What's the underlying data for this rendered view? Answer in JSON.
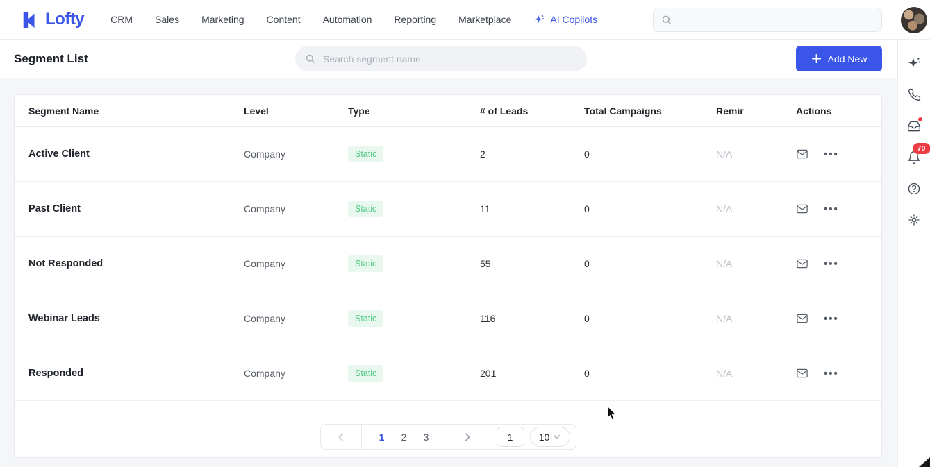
{
  "brand": {
    "logo_text": "Lofty",
    "accent_color": "#3a55e8"
  },
  "nav": {
    "items": [
      "CRM",
      "Sales",
      "Marketing",
      "Content",
      "Automation",
      "Reporting",
      "Marketplace"
    ],
    "ai_copilots_label": "AI Copilots"
  },
  "top_search": {
    "value": "",
    "placeholder": ""
  },
  "page_header": {
    "title": "Segment List",
    "search_placeholder": "Search segment name",
    "add_new_label": "Add New"
  },
  "table": {
    "columns": [
      "Segment Name",
      "Level",
      "Type",
      "# of Leads",
      "Total Campaigns",
      "Remir",
      "Actions"
    ],
    "rows": [
      {
        "name": "Active Client",
        "level": "Company",
        "type": "Static",
        "leads": "2",
        "total_campaigns": "0",
        "reminder": "N/A"
      },
      {
        "name": "Past Client",
        "level": "Company",
        "type": "Static",
        "leads": "11",
        "total_campaigns": "0",
        "reminder": "N/A"
      },
      {
        "name": "Not Responded",
        "level": "Company",
        "type": "Static",
        "leads": "55",
        "total_campaigns": "0",
        "reminder": "N/A"
      },
      {
        "name": "Webinar Leads",
        "level": "Company",
        "type": "Static",
        "leads": "116",
        "total_campaigns": "0",
        "reminder": "N/A"
      },
      {
        "name": "Responded",
        "level": "Company",
        "type": "Static",
        "leads": "201",
        "total_campaigns": "0",
        "reminder": "N/A"
      }
    ],
    "type_badge_colors": {
      "background": "#e8f8ee",
      "text": "#4fc882"
    }
  },
  "pagination": {
    "pages": [
      "1",
      "2",
      "3"
    ],
    "current": "1",
    "jump_value": "1",
    "page_size": "10"
  },
  "right_sidebar": {
    "notification_count": "70",
    "badge_color": "#ee3b43"
  }
}
